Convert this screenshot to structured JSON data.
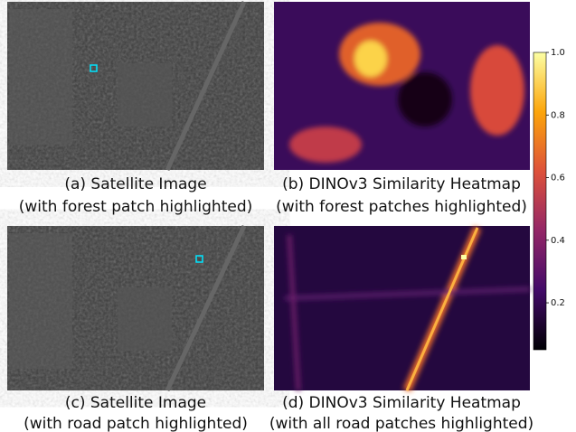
{
  "figure": {
    "panels": [
      {
        "caption": [
          "(a) Satellite Image",
          "(with forest patch highlighted)"
        ]
      },
      {
        "caption": [
          "(b) DINOv3 Similarity Heatmap",
          "(with forest patches highlighted)"
        ]
      },
      {
        "caption": [
          "(c) Satellite Image",
          "(with road patch highlighted)"
        ]
      },
      {
        "caption": [
          "(d) DINOv3 Similarity Heatmap",
          "(with all road patches highlighted)"
        ]
      }
    ],
    "colorbar": {
      "lim": [
        0.05,
        1.0
      ],
      "ticks": [
        0.2,
        0.4,
        0.6,
        0.8,
        {
          "value": 1.0,
          "label": "1.0"
        }
      ]
    }
  }
}
